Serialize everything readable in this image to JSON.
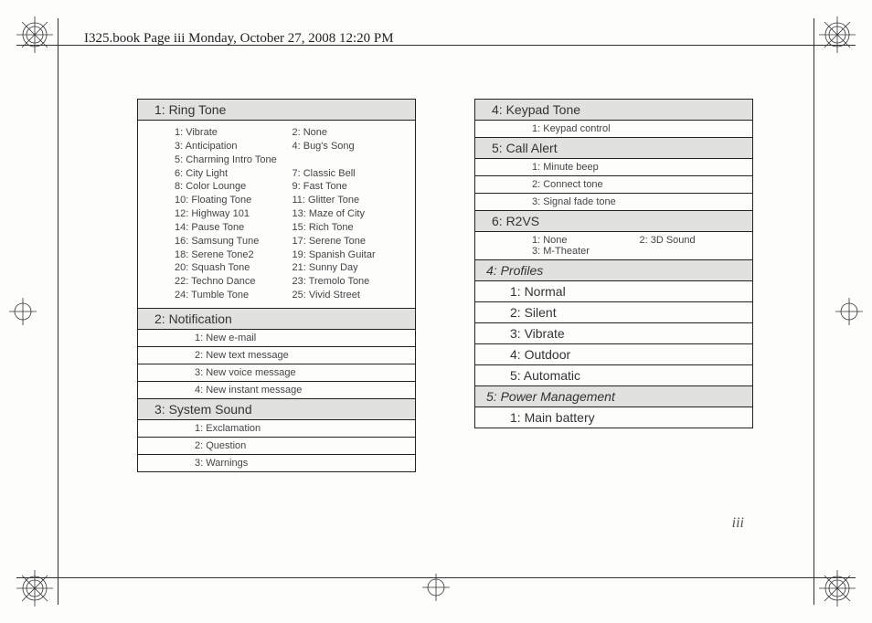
{
  "header": "I325.book  Page iii  Monday, October 27, 2008  12:20 PM",
  "page_number": "iii",
  "left_col": {
    "ring_tone": {
      "title": "1: Ring Tone",
      "items": [
        [
          "1: Vibrate",
          "2: None"
        ],
        [
          "3: Anticipation",
          "4: Bug's Song"
        ],
        [
          "5: Charming Intro Tone",
          ""
        ],
        [
          "6: City Light",
          "7: Classic Bell"
        ],
        [
          "8: Color Lounge",
          "9: Fast Tone"
        ],
        [
          "10: Floating Tone",
          "11: Glitter Tone"
        ],
        [
          "12: Highway 101",
          "13: Maze of City"
        ],
        [
          "14: Pause Tone",
          "15: Rich Tone"
        ],
        [
          "16: Samsung Tune",
          "17: Serene Tone"
        ],
        [
          "18: Serene Tone2",
          "19: Spanish Guitar"
        ],
        [
          "20: Squash Tone",
          "21: Sunny Day"
        ],
        [
          "22: Techno Dance",
          "23: Tremolo Tone"
        ],
        [
          "24: Tumble Tone",
          "25: Vivid Street"
        ]
      ]
    },
    "notification": {
      "title": "2: Notification",
      "items": [
        "1: New e-mail",
        "2: New text message",
        "3: New voice message",
        "4: New instant message"
      ]
    },
    "system_sound": {
      "title": "3: System Sound",
      "items": [
        "1: Exclamation",
        "2: Question",
        "3: Warnings"
      ]
    }
  },
  "right_col": {
    "keypad_tone": {
      "title": "4: Keypad Tone",
      "items": [
        "1: Keypad control"
      ]
    },
    "call_alert": {
      "title": "5: Call Alert",
      "items": [
        "1: Minute beep",
        "2: Connect tone",
        "3: Signal fade tone"
      ]
    },
    "r2vs": {
      "title": "6: R2VS",
      "rows": [
        [
          "1: None",
          "2: 3D Sound"
        ],
        [
          "3: M-Theater",
          ""
        ]
      ]
    },
    "profiles": {
      "title": "4: Profiles",
      "items": [
        "1: Normal",
        "2: Silent",
        "3: Vibrate",
        "4: Outdoor",
        "5: Automatic"
      ]
    },
    "power": {
      "title": "5: Power Management",
      "items": [
        "1: Main battery"
      ]
    }
  },
  "style": {
    "bg": "#fdfdfc",
    "border": "#222222",
    "head_bg": "#e1e1df",
    "text": "#333333",
    "small_text": "#444444",
    "head_fontsize": 14,
    "item_fontsize": 11,
    "header_fontsize": 15,
    "pagenum_fontsize": 16
  }
}
